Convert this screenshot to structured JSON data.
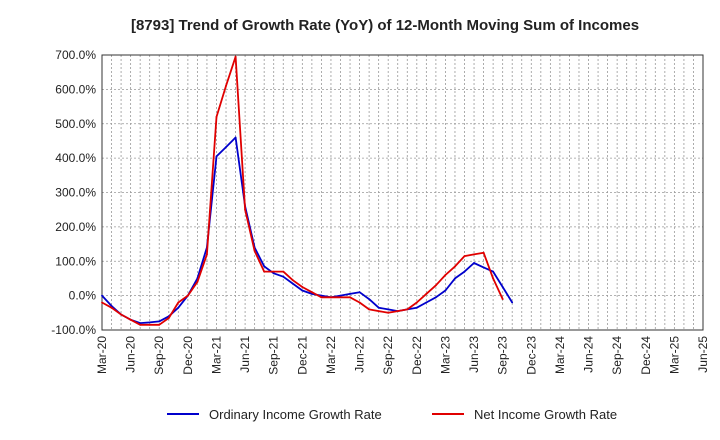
{
  "chart_data": {
    "type": "line",
    "title": "[8793]  Trend of Growth Rate (YoY) of 12-Month Moving Sum of Incomes",
    "xlabel": "",
    "ylabel": "",
    "ylim": [
      -100,
      700
    ],
    "y_ticks": [
      "-100.0%",
      "0.0%",
      "100.0%",
      "200.0%",
      "300.0%",
      "400.0%",
      "500.0%",
      "600.0%",
      "700.0%"
    ],
    "y_tick_values": [
      -100,
      0,
      100,
      200,
      300,
      400,
      500,
      600,
      700
    ],
    "x_ticks": [
      "Mar-20",
      "Jun-20",
      "Sep-20",
      "Dec-20",
      "Mar-21",
      "Jun-21",
      "Sep-21",
      "Dec-21",
      "Mar-22",
      "Jun-22",
      "Sep-22",
      "Dec-22",
      "Mar-23",
      "Jun-23",
      "Sep-23",
      "Dec-23",
      "Mar-24",
      "Jun-24",
      "Sep-24",
      "Dec-24",
      "Mar-25",
      "Jun-25"
    ],
    "grid": true,
    "legend_position": "bottom",
    "series": [
      {
        "name": "Ordinary Income Growth Rate",
        "color": "#0000cc",
        "x_start": "Mar-20",
        "values": [
          0,
          -30,
          -55,
          -70,
          -80,
          -78,
          -75,
          -60,
          -35,
          0,
          50,
          140,
          405,
          432,
          460,
          260,
          140,
          85,
          65,
          55,
          35,
          15,
          5,
          0,
          -5,
          0,
          5,
          10,
          -10,
          -35,
          -40,
          -45,
          -40,
          -35,
          -20,
          -5,
          15,
          50,
          70,
          95,
          82,
          70,
          25,
          -20
        ]
      },
      {
        "name": "Net Income Growth Rate",
        "color": "#e00000",
        "x_start": "Mar-20",
        "values": [
          -20,
          -35,
          -55,
          -70,
          -85,
          -85,
          -85,
          -65,
          -20,
          0,
          40,
          120,
          520,
          610,
          695,
          250,
          130,
          70,
          70,
          70,
          45,
          25,
          10,
          -5,
          -5,
          -5,
          -5,
          -20,
          -40,
          -45,
          -50,
          -45,
          -40,
          -20,
          5,
          30,
          60,
          85,
          115,
          120,
          125,
          50,
          -10
        ]
      }
    ]
  }
}
